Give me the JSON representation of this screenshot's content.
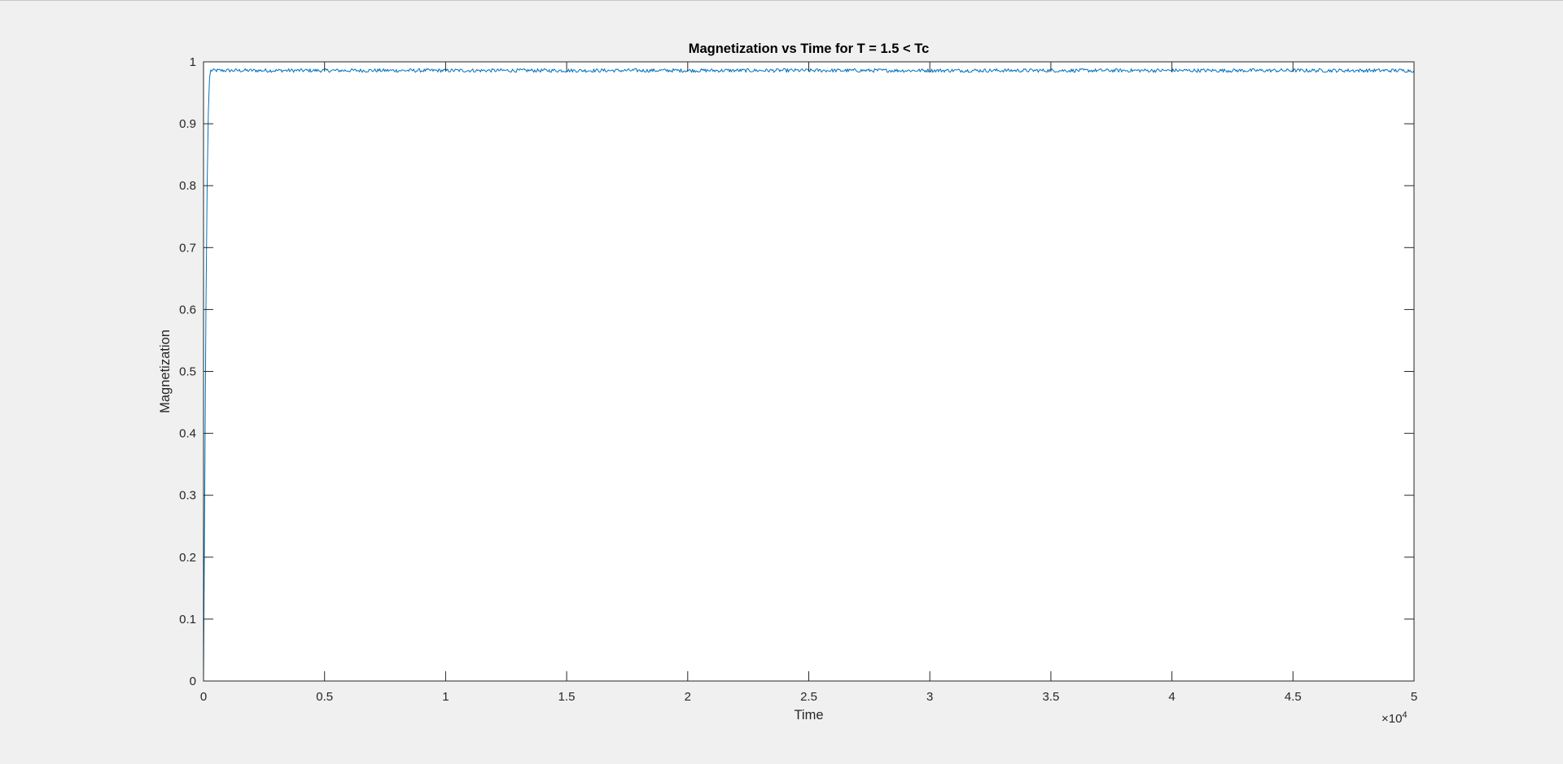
{
  "chart_data": {
    "type": "line",
    "title": "Magnetization vs Time for T = 1.5 < Tc",
    "xlabel": "Time",
    "ylabel": "Magnetization",
    "xlim": [
      0,
      50000
    ],
    "ylim": [
      0,
      1
    ],
    "x_ticks": [
      0,
      5000,
      10000,
      15000,
      20000,
      25000,
      30000,
      35000,
      40000,
      45000,
      50000
    ],
    "x_tick_labels": [
      "0",
      "0.5",
      "1",
      "1.5",
      "2",
      "2.5",
      "3",
      "3.5",
      "4",
      "4.5",
      "5"
    ],
    "x_exponent_label": "×10",
    "x_exponent_power": "4",
    "y_ticks": [
      0,
      0.1,
      0.2,
      0.3,
      0.4,
      0.5,
      0.6,
      0.7,
      0.8,
      0.9,
      1
    ],
    "y_tick_labels": [
      "0",
      "0.1",
      "0.2",
      "0.3",
      "0.4",
      "0.5",
      "0.6",
      "0.7",
      "0.8",
      "0.9",
      "1"
    ],
    "grid": false,
    "line_color": "#0072bd",
    "series": [
      {
        "x": [
          0,
          50,
          100,
          150,
          200,
          250,
          300,
          1000,
          5000,
          10000,
          15000,
          20000,
          25000,
          30000,
          35000,
          40000,
          45000,
          50000
        ],
        "values": [
          0.0,
          0.3,
          0.6,
          0.8,
          0.92,
          0.975,
          0.986,
          0.986,
          0.986,
          0.986,
          0.986,
          0.986,
          0.986,
          0.986,
          0.986,
          0.986,
          0.986,
          0.986
        ],
        "noise_amplitude": 0.003
      }
    ]
  }
}
